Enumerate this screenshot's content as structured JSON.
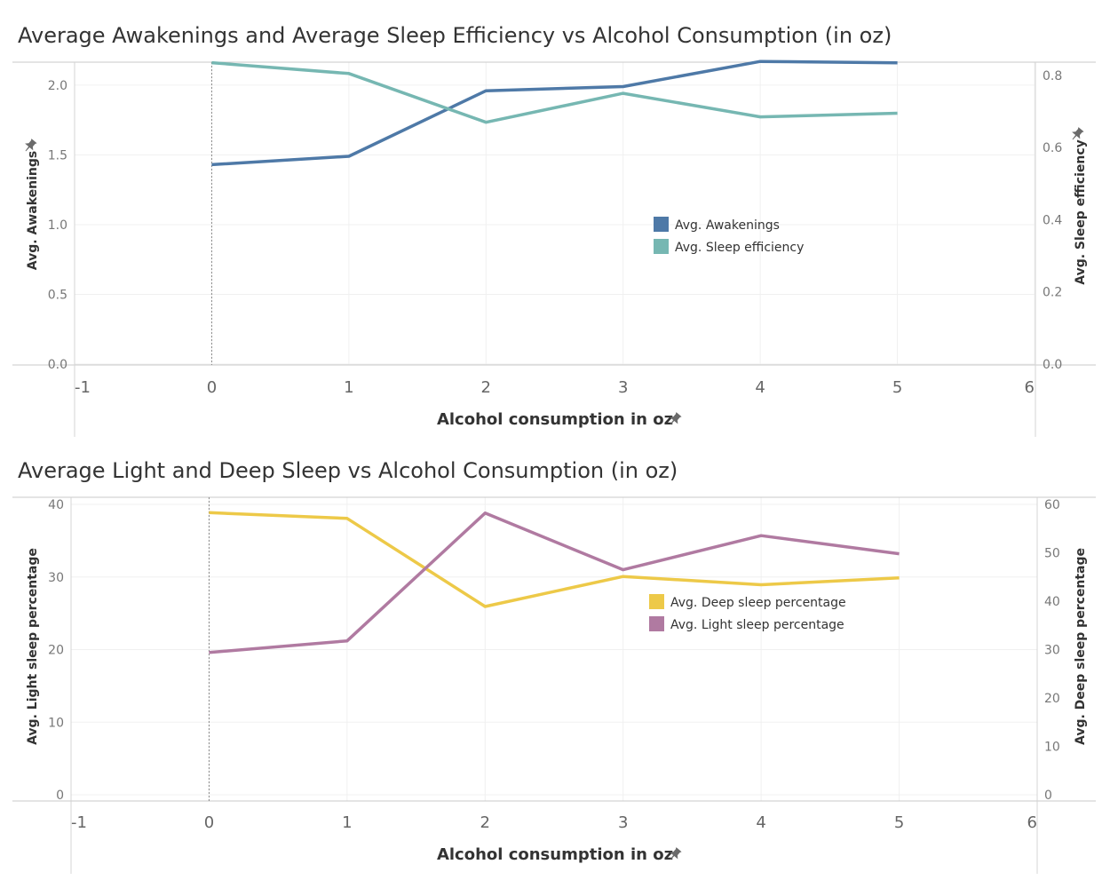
{
  "chart_data": [
    {
      "type": "line",
      "title": "Average Awakenings and Average Sleep Efficiency vs Alcohol Consumption (in oz)",
      "xlabel": "Alcohol consumption in oz",
      "ylabel_left": "Avg. Awakenings",
      "ylabel_right": "Avg. Sleep efficiency",
      "xlim": [
        -1,
        6
      ],
      "x_ticks": [
        -1,
        0,
        1,
        2,
        3,
        4,
        5,
        6
      ],
      "ylim_left": [
        0,
        2.2
      ],
      "ylim_right": [
        0,
        0.85
      ],
      "y_ticks_left": [
        "0.0",
        "0.5",
        "1.0",
        "1.5",
        "2.0"
      ],
      "y_ticks_right": [
        "0.0",
        "0.2",
        "0.4",
        "0.6",
        "0.8"
      ],
      "x": [
        0,
        1,
        2,
        3,
        4,
        5
      ],
      "series": [
        {
          "name": "Avg. Awakenings",
          "axis": "left",
          "color": "#4e79a7",
          "values": [
            1.43,
            1.49,
            1.96,
            1.99,
            2.17,
            2.16
          ]
        },
        {
          "name": "Avg. Sleep efficiency",
          "axis": "right",
          "color": "#76b7b2",
          "values": [
            0.835,
            0.805,
            0.67,
            0.75,
            0.685,
            0.695
          ]
        }
      ],
      "legend_position": "center-right",
      "grid": true
    },
    {
      "type": "line",
      "title": "Average Light and Deep Sleep vs Alcohol Consumption (in oz)",
      "xlabel": "Alcohol consumption in oz",
      "ylabel_left": "Avg. Light sleep percentage",
      "ylabel_right": "Avg. Deep sleep percentage",
      "xlim": [
        -1,
        6
      ],
      "x_ticks": [
        -1,
        0,
        1,
        2,
        3,
        4,
        5,
        6
      ],
      "ylim_left": [
        0,
        40
      ],
      "ylim_right": [
        0,
        60
      ],
      "y_ticks_left": [
        "0",
        "10",
        "20",
        "30",
        "40"
      ],
      "y_ticks_right": [
        "0",
        "10",
        "20",
        "30",
        "40",
        "50",
        "60"
      ],
      "x": [
        0,
        1,
        2,
        3,
        4,
        5
      ],
      "series": [
        {
          "name": "Avg. Deep sleep percentage",
          "axis": "right",
          "color": "#edc948",
          "values": [
            58.3,
            57.1,
            38.9,
            45.1,
            43.4,
            44.8
          ]
        },
        {
          "name": "Avg. Light sleep percentage",
          "axis": "left",
          "color": "#b07aa1",
          "values": [
            19.6,
            21.2,
            38.8,
            31.0,
            35.7,
            33.2
          ]
        }
      ],
      "legend_position": "center-right",
      "grid": true
    }
  ]
}
